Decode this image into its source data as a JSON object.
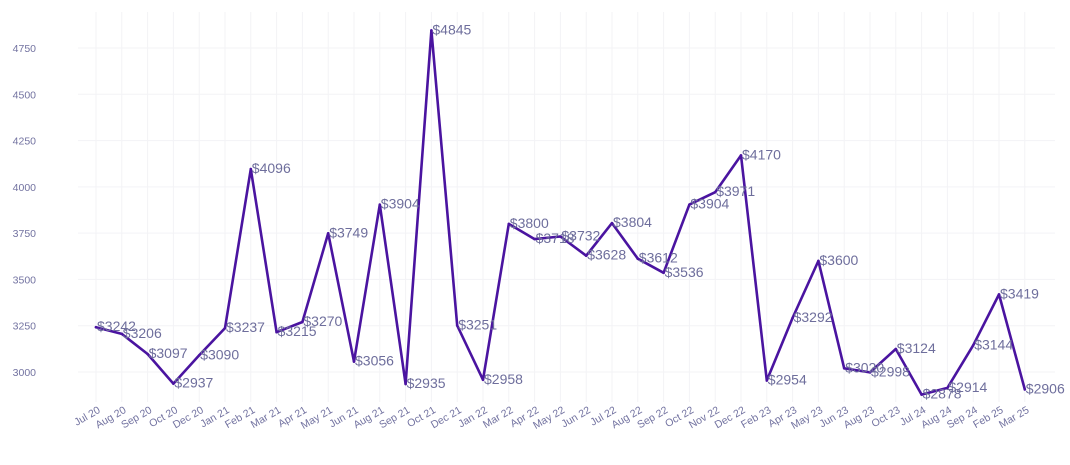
{
  "chart_data": {
    "type": "line",
    "title": "",
    "xlabel": "",
    "ylabel": "",
    "ylim": [
      2800,
      4900
    ],
    "y_ticks": [
      3000,
      3250,
      3500,
      3750,
      4000,
      4250,
      4500,
      4750
    ],
    "grid": true,
    "line_color": "#4a14a0",
    "label_prefix": "$",
    "categories": [
      "Jul 20",
      "Aug 20",
      "Sep 20",
      "Oct 20",
      "Dec 20",
      "Jan 21",
      "Feb 21",
      "Mar 21",
      "Apr 21",
      "May 21",
      "Jun 21",
      "Aug 21",
      "Sep 21",
      "Oct 21",
      "Dec 21",
      "Jan 22",
      "Mar 22",
      "Apr 22",
      "May 22",
      "Jun 22",
      "Jul 22",
      "Aug 22",
      "Sep 22",
      "Oct 22",
      "Nov 22",
      "Dec 22",
      "Feb 23",
      "Apr 23",
      "May 23",
      "Jun 23",
      "Aug 23",
      "Oct 23",
      "Jul 24",
      "Aug 24",
      "Sep 24",
      "Feb 25",
      "Mar 25"
    ],
    "values": [
      3242,
      3206,
      3097,
      2937,
      3090,
      3237,
      4096,
      3215,
      3270,
      3749,
      3056,
      3904,
      2935,
      4845,
      3251,
      2958,
      3800,
      3718,
      3732,
      3628,
      3804,
      3612,
      3536,
      3904,
      3971,
      4170,
      2954,
      3292,
      3600,
      3020,
      2998,
      3124,
      2878,
      2914,
      3144,
      3419,
      2906
    ]
  }
}
